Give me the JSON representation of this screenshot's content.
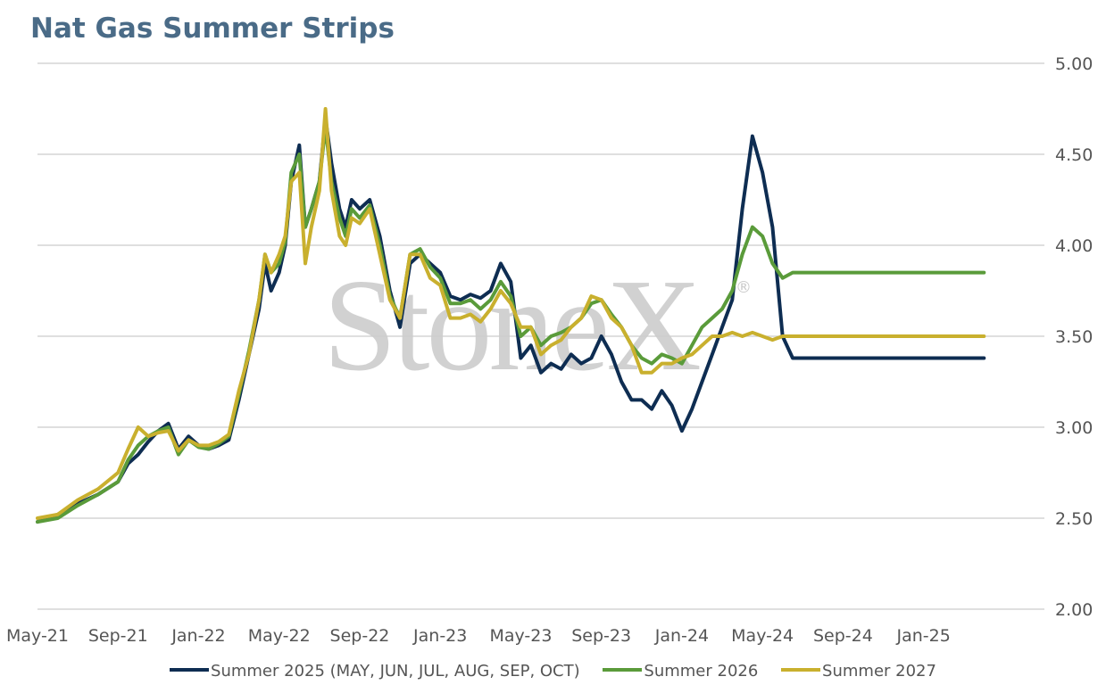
{
  "title": "Nat Gas Summer Strips",
  "watermark": "StoneX",
  "watermark_mark": "®",
  "chart_data": {
    "type": "line",
    "title": "Nat Gas Summer Strips",
    "xlabel": "",
    "ylabel": "",
    "ylim": [
      2.0,
      5.0
    ],
    "yticks": [
      "5.00",
      "4.50",
      "4.00",
      "3.50",
      "3.00",
      "2.50",
      "2.00"
    ],
    "y_axis_position": "right",
    "xticks": [
      "May-21",
      "Sep-21",
      "Jan-22",
      "May-22",
      "Sep-22",
      "Jan-23",
      "May-23",
      "Sep-23",
      "Jan-24",
      "May-24",
      "Sep-24",
      "Jan-25"
    ],
    "x_range_months": [
      0,
      47
    ],
    "grid": "horizontal",
    "legend_position": "bottom",
    "colors": {
      "s2025": "#0e2d52",
      "s2026": "#5a9b3a",
      "s2027": "#c9b02e",
      "title": "#4a6b87",
      "grid": "#cccccc"
    },
    "series": [
      {
        "name": "Summer 2025 (MAY, JUN, JUL, AUG, SEP, OCT)",
        "color": "#0e2d52",
        "x": [
          0,
          1,
          2,
          3,
          4,
          4.5,
          5,
          5.5,
          6,
          6.5,
          7,
          7.5,
          8,
          8.5,
          9,
          9.5,
          10,
          10.5,
          11,
          11.3,
          11.6,
          12,
          12.3,
          12.6,
          13,
          13.3,
          13.6,
          14,
          14.3,
          14.6,
          15,
          15.3,
          15.6,
          16,
          16.5,
          17,
          17.5,
          18,
          18.5,
          19,
          19.5,
          20,
          20.5,
          21,
          21.5,
          22,
          22.5,
          23,
          23.5,
          24,
          24.5,
          25,
          25.5,
          26,
          26.5,
          27,
          27.5,
          28,
          28.5,
          29,
          29.5,
          30,
          30.5,
          31,
          31.5,
          32,
          32.5,
          33,
          33.5,
          34,
          34.5,
          35,
          35.5,
          36,
          36.5,
          37,
          37.5,
          38,
          38.5,
          39,
          39.5,
          40,
          40.5,
          41,
          41.5,
          42,
          42.5,
          43,
          43.3,
          43.6,
          44,
          44.3,
          44.6,
          45,
          45.3,
          45.6,
          46,
          46.3,
          46.6,
          47
        ],
        "values": [
          2.48,
          2.52,
          2.58,
          2.63,
          2.7,
          2.8,
          2.85,
          2.92,
          2.98,
          3.02,
          2.88,
          2.95,
          2.9,
          2.88,
          2.9,
          2.93,
          3.15,
          3.4,
          3.65,
          3.9,
          3.75,
          3.85,
          4.0,
          4.35,
          4.55,
          4.1,
          4.2,
          4.35,
          4.7,
          4.45,
          4.2,
          4.1,
          4.25,
          4.2,
          4.25,
          4.05,
          3.75,
          3.55,
          3.9,
          3.95,
          3.9,
          3.85,
          3.72,
          3.7,
          3.73,
          3.71,
          3.75,
          3.9,
          3.8,
          3.38,
          3.45,
          3.3,
          3.35,
          3.32,
          3.4,
          3.35,
          3.38,
          3.5,
          3.4,
          3.25,
          3.15,
          3.15,
          3.1,
          3.2,
          3.12,
          2.98,
          3.1,
          3.25,
          3.4,
          3.55,
          3.7,
          4.2,
          4.6,
          4.4,
          4.1,
          3.5,
          3.38,
          3.38,
          3.38,
          3.38,
          3.38,
          3.38,
          3.38,
          3.38,
          3.38,
          3.38,
          3.38,
          3.38,
          3.38,
          3.38,
          3.38,
          3.38,
          3.38,
          3.38,
          3.38,
          3.38,
          3.38,
          3.38,
          3.38,
          3.38
        ]
      },
      {
        "name": "Summer 2026",
        "color": "#5a9b3a",
        "x": [
          0,
          1,
          2,
          3,
          4,
          4.5,
          5,
          5.5,
          6,
          6.5,
          7,
          7.5,
          8,
          8.5,
          9,
          9.5,
          10,
          10.5,
          11,
          11.3,
          11.6,
          12,
          12.3,
          12.6,
          13,
          13.3,
          13.6,
          14,
          14.3,
          14.6,
          15,
          15.3,
          15.6,
          16,
          16.5,
          17,
          17.5,
          18,
          18.5,
          19,
          19.5,
          20,
          20.5,
          21,
          21.5,
          22,
          22.5,
          23,
          23.5,
          24,
          24.5,
          25,
          25.5,
          26,
          26.5,
          27,
          27.5,
          28,
          28.5,
          29,
          29.5,
          30,
          30.5,
          31,
          31.5,
          32,
          32.5,
          33,
          33.5,
          34,
          34.5,
          35,
          35.5,
          36,
          36.5,
          37,
          37.5,
          38,
          38.5,
          39,
          39.5,
          40,
          40.5,
          41,
          41.5,
          42,
          42.5,
          43,
          43.3,
          43.6,
          44,
          44.3,
          44.6,
          45,
          45.3,
          45.6,
          46,
          46.3,
          46.6,
          47
        ],
        "values": [
          2.48,
          2.5,
          2.57,
          2.63,
          2.7,
          2.82,
          2.9,
          2.95,
          2.98,
          3.0,
          2.85,
          2.93,
          2.89,
          2.88,
          2.91,
          2.95,
          3.18,
          3.42,
          3.7,
          3.95,
          3.85,
          3.9,
          4.02,
          4.4,
          4.5,
          4.1,
          4.2,
          4.35,
          4.65,
          4.35,
          4.15,
          4.05,
          4.2,
          4.15,
          4.22,
          4.0,
          3.72,
          3.6,
          3.95,
          3.98,
          3.88,
          3.82,
          3.68,
          3.68,
          3.7,
          3.65,
          3.7,
          3.8,
          3.72,
          3.5,
          3.55,
          3.45,
          3.5,
          3.52,
          3.55,
          3.6,
          3.68,
          3.7,
          3.62,
          3.55,
          3.45,
          3.38,
          3.35,
          3.4,
          3.38,
          3.35,
          3.45,
          3.55,
          3.6,
          3.65,
          3.75,
          3.95,
          4.1,
          4.05,
          3.9,
          3.82,
          3.85,
          3.85,
          3.85,
          3.85,
          3.85,
          3.85,
          3.85,
          3.85,
          3.85,
          3.85,
          3.85,
          3.85,
          3.85,
          3.85,
          3.85,
          3.85,
          3.85,
          3.85,
          3.85,
          3.85,
          3.85,
          3.85,
          3.85,
          3.85
        ]
      },
      {
        "name": "Summer 2027",
        "color": "#c9b02e",
        "x": [
          0,
          1,
          2,
          3,
          4,
          4.5,
          5,
          5.5,
          6,
          6.5,
          7,
          7.5,
          8,
          8.5,
          9,
          9.5,
          10,
          10.5,
          11,
          11.3,
          11.6,
          12,
          12.3,
          12.6,
          13,
          13.3,
          13.6,
          14,
          14.3,
          14.6,
          15,
          15.3,
          15.6,
          16,
          16.5,
          17,
          17.5,
          18,
          18.5,
          19,
          19.5,
          20,
          20.5,
          21,
          21.5,
          22,
          22.5,
          23,
          23.5,
          24,
          24.5,
          25,
          25.5,
          26,
          26.5,
          27,
          27.5,
          28,
          28.5,
          29,
          29.5,
          30,
          30.5,
          31,
          31.5,
          32,
          32.5,
          33,
          33.5,
          34,
          34.5,
          35,
          35.5,
          36,
          36.5,
          37,
          37.5,
          38,
          38.5,
          39,
          39.5,
          40,
          40.5,
          41,
          41.5,
          42,
          42.5,
          43,
          43.3,
          43.6,
          44,
          44.3,
          44.6,
          45,
          45.3,
          45.6,
          46,
          46.3,
          46.6,
          47
        ],
        "values": [
          2.5,
          2.52,
          2.6,
          2.66,
          2.75,
          2.88,
          3.0,
          2.95,
          2.97,
          2.98,
          2.87,
          2.93,
          2.9,
          2.9,
          2.92,
          2.96,
          3.2,
          3.4,
          3.7,
          3.95,
          3.85,
          3.95,
          4.05,
          4.35,
          4.4,
          3.9,
          4.1,
          4.3,
          4.75,
          4.3,
          4.05,
          4.0,
          4.15,
          4.12,
          4.2,
          3.95,
          3.7,
          3.6,
          3.95,
          3.95,
          3.82,
          3.78,
          3.6,
          3.6,
          3.62,
          3.58,
          3.65,
          3.75,
          3.68,
          3.55,
          3.55,
          3.4,
          3.45,
          3.48,
          3.55,
          3.6,
          3.72,
          3.7,
          3.6,
          3.55,
          3.45,
          3.3,
          3.3,
          3.35,
          3.35,
          3.38,
          3.4,
          3.45,
          3.5,
          3.5,
          3.52,
          3.5,
          3.52,
          3.5,
          3.48,
          3.5,
          3.5,
          3.5,
          3.5,
          3.5,
          3.5,
          3.5,
          3.5,
          3.5,
          3.5,
          3.5,
          3.5,
          3.5,
          3.5,
          3.5,
          3.5,
          3.5,
          3.5,
          3.5,
          3.5,
          3.5,
          3.5,
          3.5,
          3.5,
          3.5
        ]
      }
    ]
  }
}
